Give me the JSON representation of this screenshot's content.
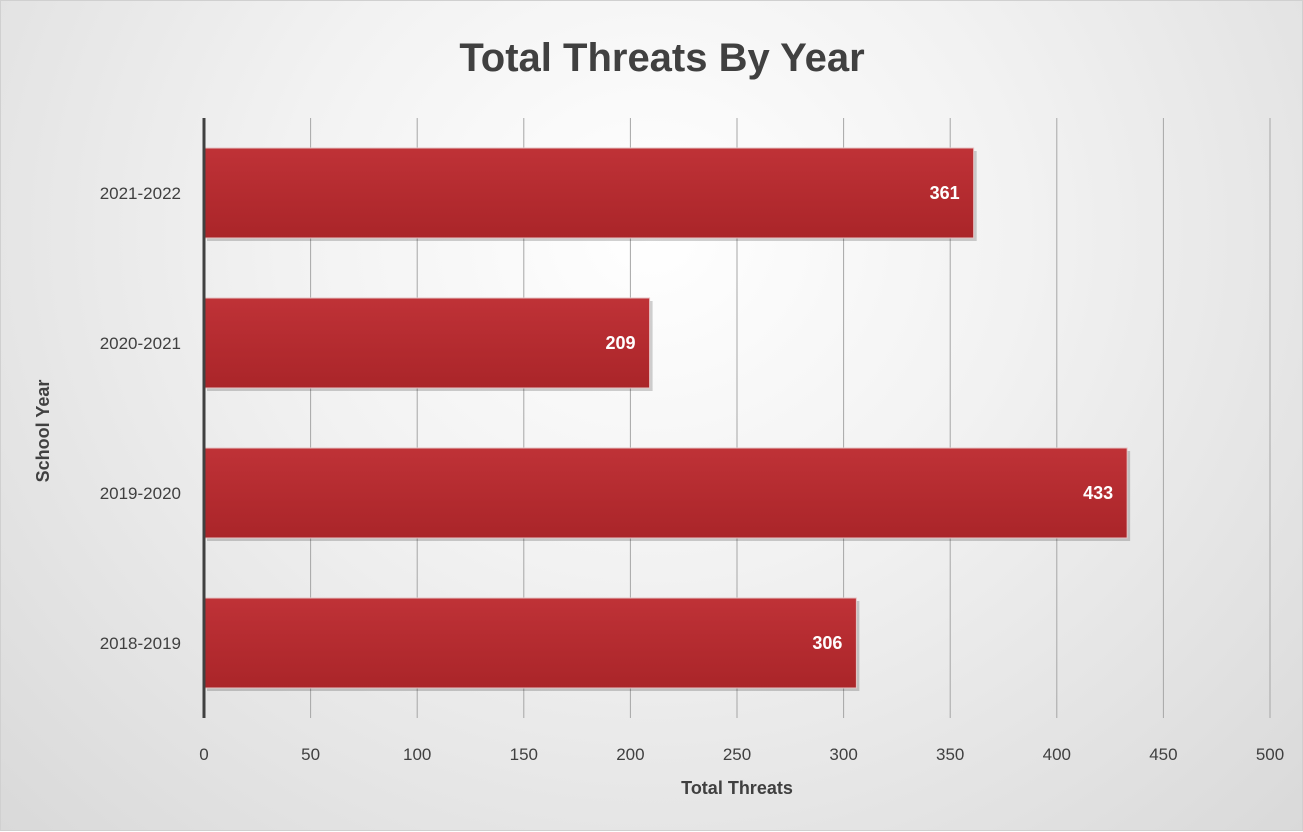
{
  "chart_data": {
    "type": "bar",
    "orientation": "horizontal",
    "title": "Total Threats By Year",
    "xlabel": "Total Threats",
    "ylabel": "School Year",
    "categories": [
      "2021-2022",
      "2020-2021",
      "2019-2020",
      "2018-2019"
    ],
    "values": [
      361,
      209,
      433,
      306
    ],
    "xlim": [
      0,
      500
    ],
    "x_ticks": [
      0,
      50,
      100,
      150,
      200,
      250,
      300,
      350,
      400,
      450,
      500
    ],
    "x_tick_labels": [
      "0",
      "50",
      "100",
      "150",
      "200",
      "250",
      "300",
      "350",
      "400",
      "450",
      "500"
    ],
    "grid": "vertical",
    "legend": "none",
    "bar_color": "#b52a2e",
    "data_labels": "inside-end"
  }
}
